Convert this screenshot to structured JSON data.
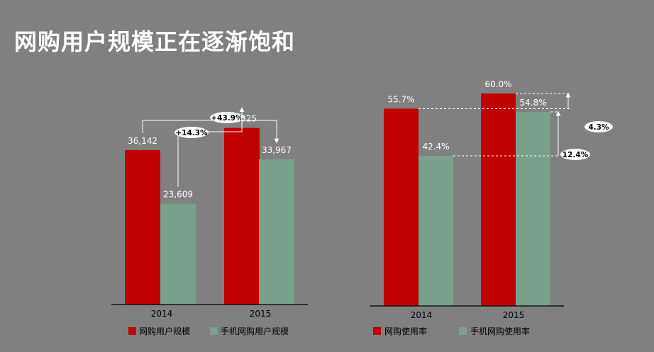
{
  "title": "网购用户规模正在逐渐饱和",
  "colors": {
    "background": "#808080",
    "primary": "#c00000",
    "secondary": "#78a08c",
    "axis": "#000000",
    "label": "#ffffff",
    "annotation_line": "#ffffff"
  },
  "chart_data": [
    {
      "type": "bar",
      "title": "",
      "categories": [
        "2014",
        "2015"
      ],
      "series": [
        {
          "name": "网购用户规模",
          "values": [
            36142,
            41325
          ],
          "labels": [
            "36,142",
            "41,325"
          ]
        },
        {
          "name": "手机网购用户规模",
          "values": [
            23609,
            33967
          ],
          "labels": [
            "23,609",
            "33,967"
          ]
        }
      ],
      "ylim": [
        0,
        60000
      ],
      "grid": false,
      "legend": "bottom",
      "annotations": [
        {
          "text": "+43.9%",
          "from": "网购用户规模 2014",
          "to": "手机网购用户规模 2015"
        },
        {
          "text": "+14.3%",
          "from": "手机网购用户规模 2014",
          "to": "网购用户规模 2015"
        }
      ]
    },
    {
      "type": "bar",
      "title": "",
      "categories": [
        "2014",
        "2015"
      ],
      "series": [
        {
          "name": "网购使用率",
          "values": [
            55.7,
            60.0
          ],
          "labels": [
            "55.7%",
            "60.0%"
          ]
        },
        {
          "name": "手机网购使用率",
          "values": [
            42.4,
            54.8
          ],
          "labels": [
            "42.4%",
            "54.8%"
          ]
        }
      ],
      "ylim": [
        0,
        72
      ],
      "grid": false,
      "legend": "bottom",
      "annotations": [
        {
          "text": "4.3%",
          "series": "网购使用率"
        },
        {
          "text": "12.4%",
          "series": "手机网购使用率"
        }
      ]
    }
  ]
}
